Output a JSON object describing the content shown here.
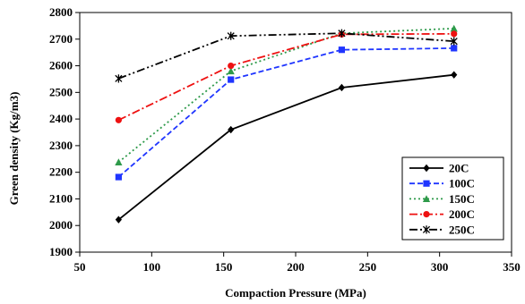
{
  "chart_data": {
    "type": "line",
    "title": "",
    "xlabel": "Compaction Pressure (MPa)",
    "ylabel": "Green density (Kg/m3)",
    "xlim": [
      50,
      350
    ],
    "ylim": [
      1900,
      2800
    ],
    "xticks": [
      50,
      100,
      150,
      200,
      250,
      300,
      350
    ],
    "yticks": [
      1900,
      2000,
      2100,
      2200,
      2300,
      2400,
      2500,
      2600,
      2700,
      2800
    ],
    "grid": false,
    "legend_position": "bottom-right",
    "series": [
      {
        "name": "20C",
        "color": "#000000",
        "marker": "diamond",
        "dash": "solid",
        "x": [
          77,
          155,
          232,
          310
        ],
        "y": [
          2022,
          2360,
          2518,
          2566
        ]
      },
      {
        "name": "100C",
        "color": "#1f35ff",
        "marker": "square",
        "dash": "dashed",
        "x": [
          77,
          155,
          232,
          310
        ],
        "y": [
          2182,
          2548,
          2660,
          2666
        ]
      },
      {
        "name": "150C",
        "color": "#2e9a4a",
        "marker": "triangle",
        "dash": "dotted",
        "x": [
          77,
          155,
          232,
          310
        ],
        "y": [
          2238,
          2580,
          2722,
          2740
        ]
      },
      {
        "name": "200C",
        "color": "#ee1111",
        "marker": "circle",
        "dash": "dashdot",
        "x": [
          77,
          155,
          232,
          310
        ],
        "y": [
          2396,
          2600,
          2718,
          2720
        ]
      },
      {
        "name": "250C",
        "color": "#000000",
        "marker": "star",
        "dash": "dashdotdot",
        "x": [
          77,
          155,
          232,
          310
        ],
        "y": [
          2552,
          2712,
          2722,
          2692
        ]
      }
    ]
  }
}
